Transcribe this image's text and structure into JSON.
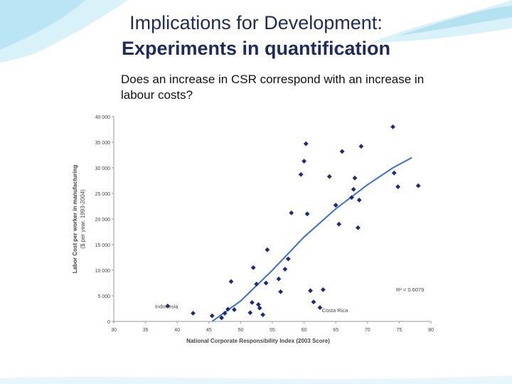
{
  "slide": {
    "title_line1": "Implications for Development:",
    "title_line2": "Experiments in quantification",
    "subtitle": "Does an increase in CSR correspond with an increase in labour costs?"
  },
  "colors": {
    "title": "#1f2b5e",
    "points": "#1f2a7a",
    "trend": "#3a6fd8",
    "accent_wave": "#8fd3e8"
  },
  "chart_data": {
    "type": "scatter",
    "title": "",
    "xlabel": "National Corporate Responsibility Index (2003 Score)",
    "ylabel_line1": "Labor Cost per worker in manufacturing",
    "ylabel_line2": "($ per year, 1993-2004)",
    "xlim": [
      30,
      80
    ],
    "ylim": [
      0,
      40000
    ],
    "x_ticks": [
      "30",
      "35",
      "40",
      "45",
      "50",
      "55",
      "60",
      "65",
      "70",
      "75",
      "80"
    ],
    "y_ticks": [
      "0",
      "5 000",
      "10 000",
      "15 000",
      "20 000",
      "25 000",
      "30 000",
      "35 000",
      "40 000"
    ],
    "grid": false,
    "annotations": [
      {
        "text": "Indonesia",
        "x": 36.5,
        "y": 2600
      },
      {
        "text": "Costa Rica",
        "x": 62.8,
        "y": 1800
      },
      {
        "text": "R² = 0.6079",
        "x": 74.5,
        "y": 5800
      }
    ],
    "points": [
      {
        "x": 38.5,
        "y": 3000
      },
      {
        "x": 42.5,
        "y": 1600
      },
      {
        "x": 45.5,
        "y": 1100
      },
      {
        "x": 47.0,
        "y": 700
      },
      {
        "x": 47.5,
        "y": 1600
      },
      {
        "x": 48.0,
        "y": 2400
      },
      {
        "x": 48.5,
        "y": 7800
      },
      {
        "x": 49.0,
        "y": 2300
      },
      {
        "x": 51.5,
        "y": 1700
      },
      {
        "x": 51.8,
        "y": 3700
      },
      {
        "x": 52.0,
        "y": 10500
      },
      {
        "x": 52.5,
        "y": 7300
      },
      {
        "x": 52.8,
        "y": 3300
      },
      {
        "x": 53.0,
        "y": 2600
      },
      {
        "x": 53.5,
        "y": 1300
      },
      {
        "x": 54.0,
        "y": 7500
      },
      {
        "x": 54.2,
        "y": 14000
      },
      {
        "x": 56.0,
        "y": 8300
      },
      {
        "x": 56.3,
        "y": 5800
      },
      {
        "x": 57.0,
        "y": 10200
      },
      {
        "x": 57.5,
        "y": 12200
      },
      {
        "x": 58.0,
        "y": 21200
      },
      {
        "x": 59.5,
        "y": 28700
      },
      {
        "x": 60.0,
        "y": 31300
      },
      {
        "x": 60.3,
        "y": 34700
      },
      {
        "x": 60.5,
        "y": 21000
      },
      {
        "x": 61.0,
        "y": 6000
      },
      {
        "x": 61.5,
        "y": 3800
      },
      {
        "x": 62.5,
        "y": 2700
      },
      {
        "x": 63.0,
        "y": 6200
      },
      {
        "x": 64.0,
        "y": 28300
      },
      {
        "x": 65.0,
        "y": 22700
      },
      {
        "x": 65.5,
        "y": 19000
      },
      {
        "x": 66.0,
        "y": 33200
      },
      {
        "x": 67.5,
        "y": 24200
      },
      {
        "x": 67.8,
        "y": 25800
      },
      {
        "x": 68.0,
        "y": 28000
      },
      {
        "x": 68.5,
        "y": 18300
      },
      {
        "x": 68.7,
        "y": 23700
      },
      {
        "x": 69.0,
        "y": 34200
      },
      {
        "x": 74.0,
        "y": 38000
      },
      {
        "x": 74.2,
        "y": 29000
      },
      {
        "x": 74.8,
        "y": 26300
      },
      {
        "x": 78.0,
        "y": 26500
      }
    ],
    "trendline": [
      {
        "x": 45.5,
        "y": 0
      },
      {
        "x": 50,
        "y": 4000
      },
      {
        "x": 55,
        "y": 10000
      },
      {
        "x": 60,
        "y": 16500
      },
      {
        "x": 65,
        "y": 22000
      },
      {
        "x": 70,
        "y": 26700
      },
      {
        "x": 74,
        "y": 30000
      },
      {
        "x": 77,
        "y": 32000
      }
    ]
  }
}
